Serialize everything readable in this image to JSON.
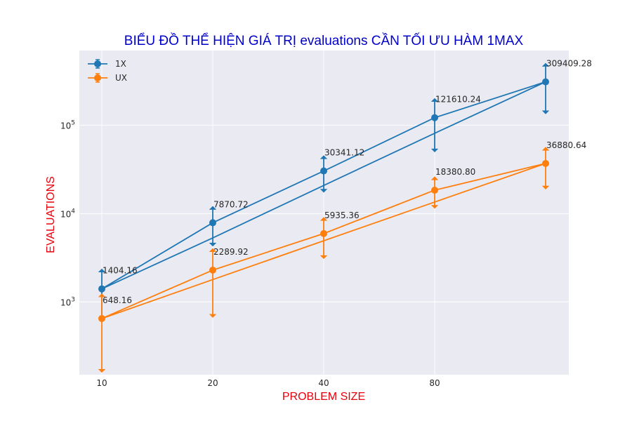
{
  "chart_data": {
    "type": "line",
    "title": "BIỂU ĐỒ THỂ HIỆN GIÁ TRỊ evaluations CẦN TỐI ƯU HÀM 1MAX",
    "xlabel": "PROBLEM SIZE",
    "ylabel": "EVALUATIONS",
    "title_color": "#0000cc",
    "label_color": "#e8000b",
    "y_scale": "log",
    "ylim": [
      150,
      700000
    ],
    "grid": true,
    "legend_position": "top-left",
    "x_ticks": [
      10,
      20,
      40,
      80
    ],
    "y_ticks": [
      {
        "value": 1000,
        "base": "10",
        "exp": "3"
      },
      {
        "value": 10000,
        "base": "10",
        "exp": "4"
      },
      {
        "value": 100000,
        "base": "10",
        "exp": "5"
      }
    ],
    "series": [
      {
        "name": "1X",
        "color": "#1f77b4",
        "x": [
          10,
          20,
          40,
          80,
          160
        ],
        "mean": [
          1404.16,
          7870.72,
          30341.12,
          121610.24,
          309409.28
        ],
        "labels": [
          "1404.16",
          "7870.72",
          "30341.12",
          "121610.24",
          "309409.28"
        ],
        "err_low": [
          600,
          4300,
          17500,
          50000,
          135000
        ],
        "err_high": [
          2350,
          12000,
          45000,
          200000,
          500000
        ],
        "fit": [
          1404.16,
          5300,
          20800,
          81000,
          309409.28
        ]
      },
      {
        "name": "UX",
        "color": "#ff7f0e",
        "x": [
          10,
          20,
          40,
          80,
          160
        ],
        "mean": [
          648.16,
          2289.92,
          5935.36,
          18380.8,
          36880.64
        ],
        "labels": [
          "648.16",
          "2289.92",
          "5935.36",
          "18380.80",
          "36880.64"
        ],
        "err_low": [
          160,
          670,
          3100,
          11500,
          19000
        ],
        "err_high": [
          1230,
          4000,
          9000,
          26000,
          56000
        ],
        "fit": [
          648.16,
          1790,
          4920,
          13500,
          36880.64
        ]
      }
    ]
  }
}
